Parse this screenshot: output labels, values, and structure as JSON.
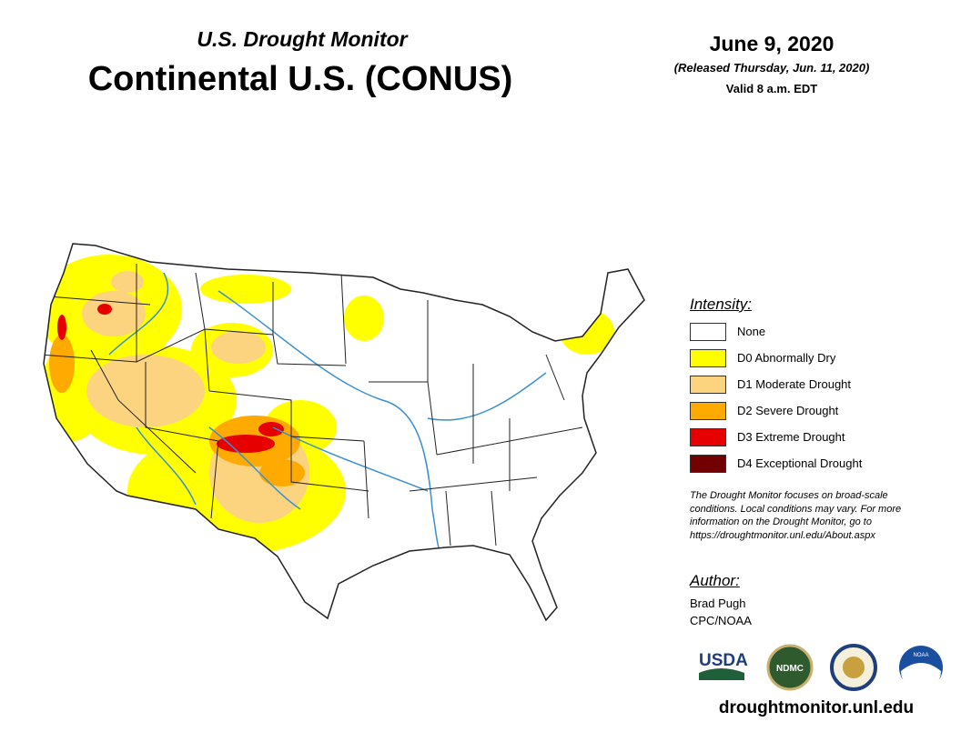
{
  "header": {
    "subtitle": "U.S. Drought Monitor",
    "title": "Continental U.S. (CONUS)",
    "date": "June 9, 2020",
    "released": "(Released Thursday, Jun. 11, 2020)",
    "valid": "Valid 8 a.m. EDT"
  },
  "legend": {
    "title": "Intensity:",
    "items": [
      {
        "label": "None",
        "color": "#ffffff"
      },
      {
        "label": "D0 Abnormally Dry",
        "color": "#ffff00"
      },
      {
        "label": "D1 Moderate Drought",
        "color": "#fcd37f"
      },
      {
        "label": "D2 Severe Drought",
        "color": "#ffaa00"
      },
      {
        "label": "D3 Extreme Drought",
        "color": "#e60000"
      },
      {
        "label": "D4 Exceptional Drought",
        "color": "#730000"
      }
    ]
  },
  "note": [
    "The Drought Monitor focuses on broad-scale",
    "conditions. Local conditions may vary. For more",
    "information on the Drought Monitor, go to",
    "https://droughtmonitor.unl.edu/About.aspx"
  ],
  "author": {
    "title": "Author:",
    "lines": [
      "Brad Pugh",
      "CPC/NOAA"
    ]
  },
  "logos": [
    "USDA",
    "NDMC",
    "NOAA"
  ],
  "footer": "droughtmonitor.unl.edu"
}
